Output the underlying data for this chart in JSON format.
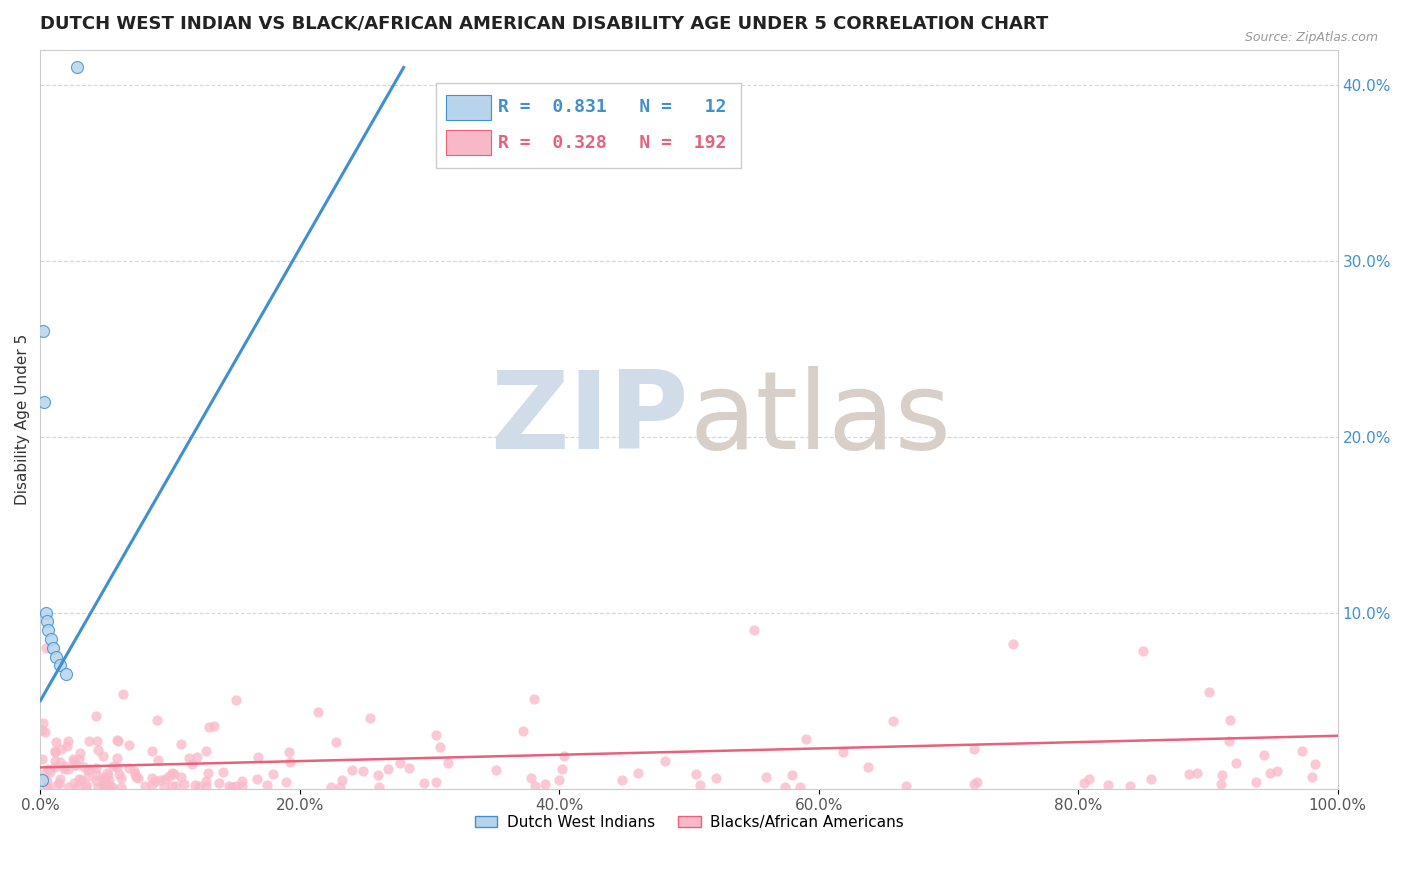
{
  "title": "DUTCH WEST INDIAN VS BLACK/AFRICAN AMERICAN DISABILITY AGE UNDER 5 CORRELATION CHART",
  "source": "Source: ZipAtlas.com",
  "ylabel": "Disability Age Under 5",
  "xlim": [
    0.0,
    1.0
  ],
  "ylim": [
    0.0,
    0.42
  ],
  "xticks": [
    0.0,
    0.2,
    0.4,
    0.6,
    0.8,
    1.0
  ],
  "xtick_labels": [
    "0.0%",
    "20.0%",
    "40.0%",
    "60.0%",
    "80.0%",
    "100.0%"
  ],
  "yticks": [
    0.0,
    0.1,
    0.2,
    0.3,
    0.4
  ],
  "ytick_labels": [
    "",
    "10.0%",
    "20.0%",
    "30.0%",
    "40.0%"
  ],
  "blue_R": 0.831,
  "blue_N": 12,
  "pink_R": 0.328,
  "pink_N": 192,
  "blue_color": "#b8d4ec",
  "blue_line_color": "#4090d0",
  "pink_color": "#f9b8c8",
  "pink_line_color": "#e8607a",
  "legend_label_blue": "Dutch West Indians",
  "legend_label_pink": "Blacks/African Americans",
  "background_color": "#ffffff",
  "grid_color": "#cccccc",
  "title_fontsize": 13,
  "axis_fontsize": 11,
  "tick_fontsize": 11,
  "legend_fontsize": 13
}
